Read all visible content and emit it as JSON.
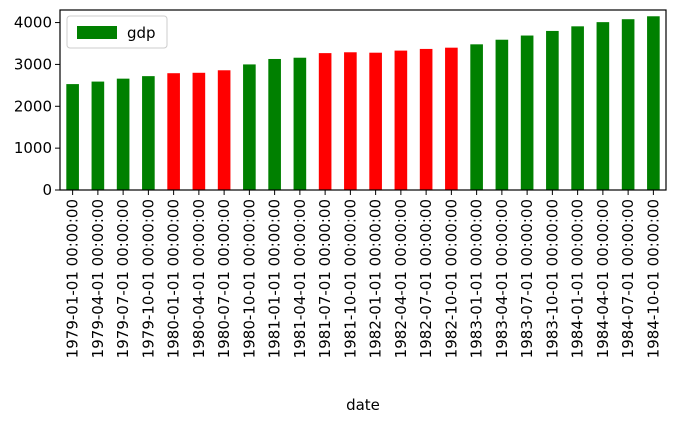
{
  "chart_data": {
    "type": "bar",
    "xlabel": "date",
    "ylabel": "",
    "ylim": [
      0,
      4300
    ],
    "yticks": [
      0,
      1000,
      2000,
      3000,
      4000
    ],
    "legend": {
      "placement": "top-left",
      "entries": [
        {
          "label": "gdp",
          "color": "#008000"
        }
      ]
    },
    "grid": false,
    "categories": [
      "1979-01-01 00:00:00",
      "1979-04-01 00:00:00",
      "1979-07-01 00:00:00",
      "1979-10-01 00:00:00",
      "1980-01-01 00:00:00",
      "1980-04-01 00:00:00",
      "1980-07-01 00:00:00",
      "1980-10-01 00:00:00",
      "1981-01-01 00:00:00",
      "1981-04-01 00:00:00",
      "1981-07-01 00:00:00",
      "1981-10-01 00:00:00",
      "1982-01-01 00:00:00",
      "1982-04-01 00:00:00",
      "1982-07-01 00:00:00",
      "1982-10-01 00:00:00",
      "1983-01-01 00:00:00",
      "1983-04-01 00:00:00",
      "1983-07-01 00:00:00",
      "1983-10-01 00:00:00",
      "1984-01-01 00:00:00",
      "1984-04-01 00:00:00",
      "1984-07-01 00:00:00",
      "1984-10-01 00:00:00"
    ],
    "series": [
      {
        "name": "gdp",
        "values": [
          2530,
          2590,
          2660,
          2720,
          2790,
          2800,
          2860,
          3000,
          3130,
          3160,
          3270,
          3290,
          3280,
          3330,
          3370,
          3400,
          3480,
          3590,
          3690,
          3800,
          3910,
          4010,
          4080,
          4150
        ],
        "colors": [
          "#008000",
          "#008000",
          "#008000",
          "#008000",
          "#ff0000",
          "#ff0000",
          "#ff0000",
          "#008000",
          "#008000",
          "#008000",
          "#ff0000",
          "#ff0000",
          "#ff0000",
          "#ff0000",
          "#ff0000",
          "#ff0000",
          "#008000",
          "#008000",
          "#008000",
          "#008000",
          "#008000",
          "#008000",
          "#008000",
          "#008000"
        ]
      }
    ]
  }
}
